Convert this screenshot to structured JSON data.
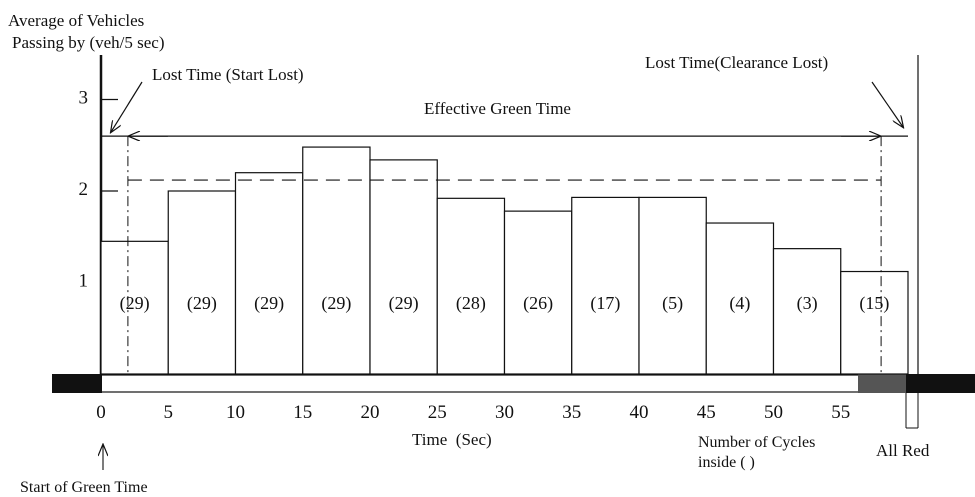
{
  "chart_data": {
    "type": "bar",
    "ylabel_line1": "Average of Vehicles",
    "ylabel_line2": "Passing by (veh/5 sec)",
    "xlabel": "Time  (Sec)",
    "x_ticks": [
      "0",
      "5",
      "10",
      "15",
      "20",
      "25",
      "30",
      "35",
      "40",
      "45",
      "50",
      "55"
    ],
    "y_ticks": [
      "1",
      "2",
      "3"
    ],
    "x_range": [
      0,
      60
    ],
    "y_range": [
      0,
      3
    ],
    "bars": [
      {
        "x_start": 0,
        "x_end": 5,
        "value": 1.45,
        "cycles": "(29)"
      },
      {
        "x_start": 5,
        "x_end": 10,
        "value": 2.0,
        "cycles": "(29)"
      },
      {
        "x_start": 10,
        "x_end": 15,
        "value": 2.2,
        "cycles": "(29)"
      },
      {
        "x_start": 15,
        "x_end": 20,
        "value": 2.48,
        "cycles": "(29)"
      },
      {
        "x_start": 20,
        "x_end": 25,
        "value": 2.34,
        "cycles": "(29)"
      },
      {
        "x_start": 25,
        "x_end": 30,
        "value": 1.92,
        "cycles": "(28)"
      },
      {
        "x_start": 30,
        "x_end": 35,
        "value": 1.78,
        "cycles": "(26)"
      },
      {
        "x_start": 35,
        "x_end": 40,
        "value": 1.93,
        "cycles": "(17)"
      },
      {
        "x_start": 40,
        "x_end": 45,
        "value": 1.93,
        "cycles": "(5)"
      },
      {
        "x_start": 45,
        "x_end": 50,
        "value": 1.65,
        "cycles": "(4)"
      },
      {
        "x_start": 50,
        "x_end": 55,
        "value": 1.37,
        "cycles": "(3)"
      },
      {
        "x_start": 55,
        "x_end": 60,
        "value": 1.12,
        "cycles": "(15)"
      }
    ],
    "saturation_flow_level": 2.12,
    "effective_green_level": 2.6,
    "effective_green_start": 2,
    "effective_green_end": 58,
    "end_of_green": 60,
    "all_red_end": 61.5,
    "annotations": {
      "start_lost": "Lost Time (Start Lost)",
      "clearance_lost": "Lost Time(Clearance Lost)",
      "effective_green": "Effective Green Time",
      "start_of_green": "Start of Green Time",
      "cycles_line1": "Number of Cycles",
      "cycles_line2": "inside ( )",
      "all_red": "All Red"
    }
  }
}
